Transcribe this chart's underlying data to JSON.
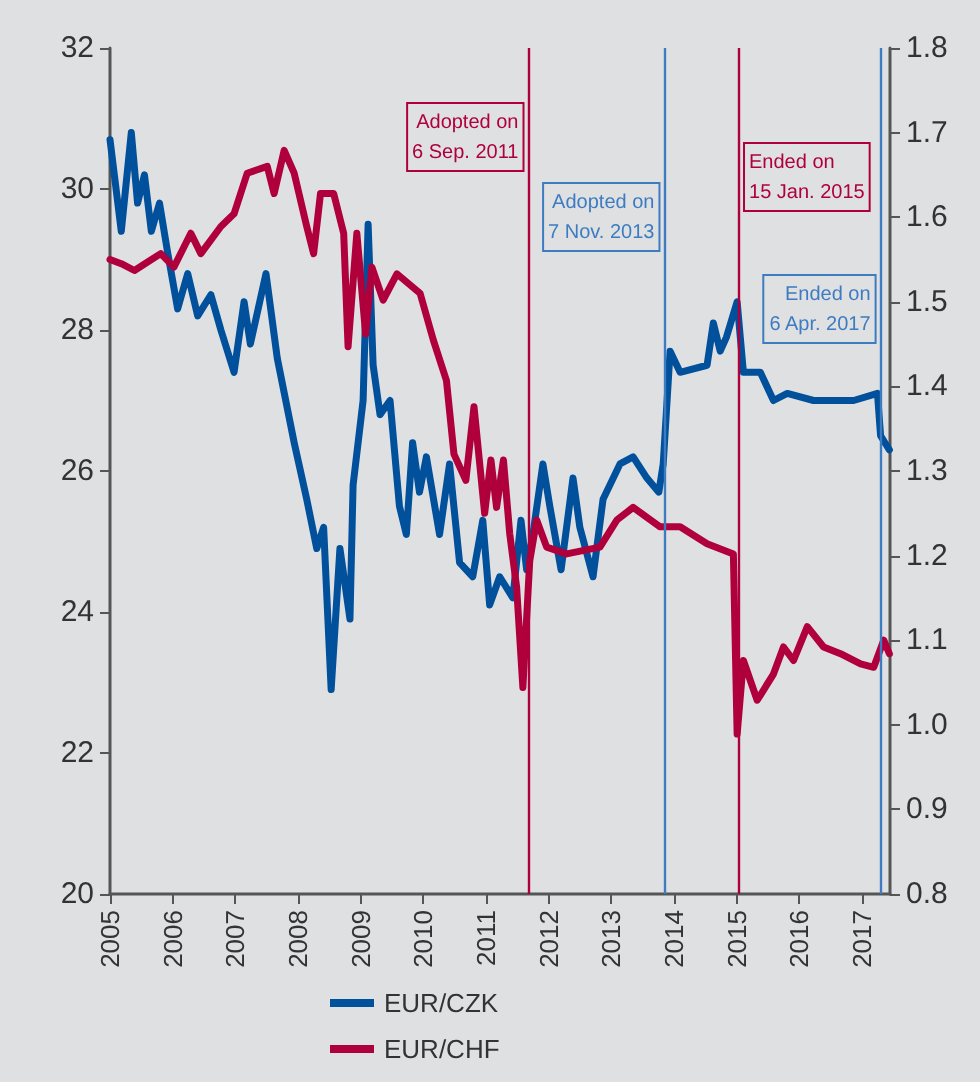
{
  "chart_data": {
    "type": "line",
    "xlim": [
      2005,
      2017.45
    ],
    "xticks": [
      2005,
      2006,
      2007,
      2008,
      2009,
      2010,
      2011,
      2012,
      2013,
      2014,
      2015,
      2016,
      2017
    ],
    "ylim": [
      20,
      32
    ],
    "yticks": [
      20,
      22,
      24,
      26,
      28,
      30,
      32
    ],
    "y2lim": [
      0.8,
      1.8
    ],
    "y2ticks": [
      {
        "value": 0.8,
        "label": "0.8"
      },
      {
        "value": 0.9,
        "label": "0.9"
      },
      {
        "value": 1,
        "label": "1.0"
      },
      {
        "value": 1.1,
        "label": "1.1"
      },
      {
        "value": 1.2,
        "label": "1.2"
      },
      {
        "value": 1.3,
        "label": "1.3"
      },
      {
        "value": 1.4,
        "label": "1.4"
      },
      {
        "value": 1.5,
        "label": "1.5"
      },
      {
        "value": 1.6,
        "label": "1.6"
      },
      {
        "value": 1.7,
        "label": "1.7"
      },
      {
        "value": 1.8,
        "label": "1.8"
      }
    ],
    "legend": "bottom",
    "series": [
      {
        "name": "EUR/CZK",
        "color": "#00509b",
        "x": [
          2005.0,
          2005.18,
          2005.34,
          2005.44,
          2005.55,
          2005.66,
          2005.79,
          2005.92,
          2006.08,
          2006.24,
          2006.4,
          2006.61,
          2006.77,
          2006.98,
          2007.14,
          2007.24,
          2007.49,
          2007.67,
          2007.94,
          2008.14,
          2008.3,
          2008.41,
          2008.53,
          2008.67,
          2008.83,
          2008.88,
          2009.04,
          2009.12,
          2009.2,
          2009.31,
          2009.47,
          2009.62,
          2009.73,
          2009.83,
          2009.94,
          2010.05,
          2010.26,
          2010.42,
          2010.58,
          2010.79,
          2010.95,
          2011.06,
          2011.22,
          2011.43,
          2011.56,
          2011.65,
          2011.75,
          2011.91,
          2012.02,
          2012.2,
          2012.39,
          2012.5,
          2012.71,
          2012.87,
          2013.14,
          2013.35,
          2013.57,
          2013.76,
          2013.83,
          2013.94,
          2014.1,
          2014.53,
          2014.63,
          2014.74,
          2014.84,
          2015.01,
          2015.11,
          2015.38,
          2015.59,
          2015.81,
          2016.23,
          2016.87,
          2017.25,
          2017.3,
          2017.44
        ],
        "values": [
          30.7,
          29.4,
          30.8,
          29.8,
          30.2,
          29.4,
          29.8,
          29.1,
          28.3,
          28.8,
          28.2,
          28.5,
          28.0,
          27.4,
          28.4,
          27.8,
          28.8,
          27.6,
          26.4,
          25.6,
          24.9,
          25.2,
          22.9,
          24.9,
          23.9,
          25.8,
          27.0,
          29.5,
          27.5,
          26.8,
          27.0,
          25.5,
          25.1,
          26.4,
          25.7,
          26.2,
          25.1,
          26.1,
          24.7,
          24.5,
          25.3,
          24.1,
          24.5,
          24.2,
          25.3,
          24.6,
          25.1,
          26.1,
          25.5,
          24.6,
          25.9,
          25.2,
          24.5,
          25.6,
          26.1,
          26.2,
          25.9,
          25.7,
          26.1,
          27.7,
          27.4,
          27.5,
          28.1,
          27.7,
          27.9,
          28.4,
          27.4,
          27.4,
          27.0,
          27.1,
          27.0,
          27.0,
          27.1,
          26.5,
          26.3
        ]
      },
      {
        "name": "EUR/CHF",
        "color": "#b0003c",
        "axis": "y2",
        "x": [
          2005.0,
          2005.18,
          2005.39,
          2005.81,
          2006.02,
          2006.29,
          2006.45,
          2006.77,
          2006.98,
          2007.19,
          2007.51,
          2007.62,
          2007.78,
          2007.94,
          2008.14,
          2008.25,
          2008.36,
          2008.57,
          2008.73,
          2008.8,
          2008.94,
          2009.08,
          2009.18,
          2009.36,
          2009.58,
          2009.95,
          2010.16,
          2010.37,
          2010.49,
          2010.68,
          2010.81,
          2010.98,
          2011.08,
          2011.17,
          2011.28,
          2011.38,
          2011.49,
          2011.59,
          2011.7,
          2011.81,
          2011.97,
          2012.29,
          2012.82,
          2013.09,
          2013.35,
          2013.78,
          2014.1,
          2014.53,
          2014.95,
          2015.01,
          2015.11,
          2015.33,
          2015.59,
          2015.75,
          2015.91,
          2016.13,
          2016.39,
          2016.66,
          2016.98,
          2017.19,
          2017.35,
          2017.44
        ],
        "values": [
          1.55,
          1.545,
          1.537,
          1.557,
          1.541,
          1.581,
          1.557,
          1.589,
          1.604,
          1.652,
          1.66,
          1.628,
          1.679,
          1.652,
          1.589,
          1.557,
          1.628,
          1.628,
          1.581,
          1.447,
          1.581,
          1.462,
          1.541,
          1.502,
          1.533,
          1.51,
          1.455,
          1.407,
          1.32,
          1.289,
          1.376,
          1.25,
          1.313,
          1.257,
          1.313,
          1.226,
          1.163,
          1.044,
          1.194,
          1.242,
          1.21,
          1.202,
          1.21,
          1.242,
          1.257,
          1.234,
          1.234,
          1.214,
          1.202,
          0.989,
          1.076,
          1.029,
          1.06,
          1.092,
          1.076,
          1.116,
          1.092,
          1.084,
          1.072,
          1.068,
          1.1,
          1.084
        ]
      }
    ],
    "ref_lines": [
      {
        "axis": "x",
        "value": 2011.68,
        "label": "Adopted on\n6 Sep. 2011",
        "color": "#b0003c"
      },
      {
        "axis": "x",
        "value": 2013.85,
        "label": "Adopted on\n7 Nov. 2013",
        "color": "#3d7cc0"
      },
      {
        "axis": "x",
        "value": 2015.04,
        "label": "Ended on\n15 Jan. 2015",
        "color": "#b0003c"
      },
      {
        "axis": "x",
        "value": 2017.3,
        "label": "Ended on\n6 Apr. 2017",
        "color": "#3d7cc0"
      }
    ]
  }
}
